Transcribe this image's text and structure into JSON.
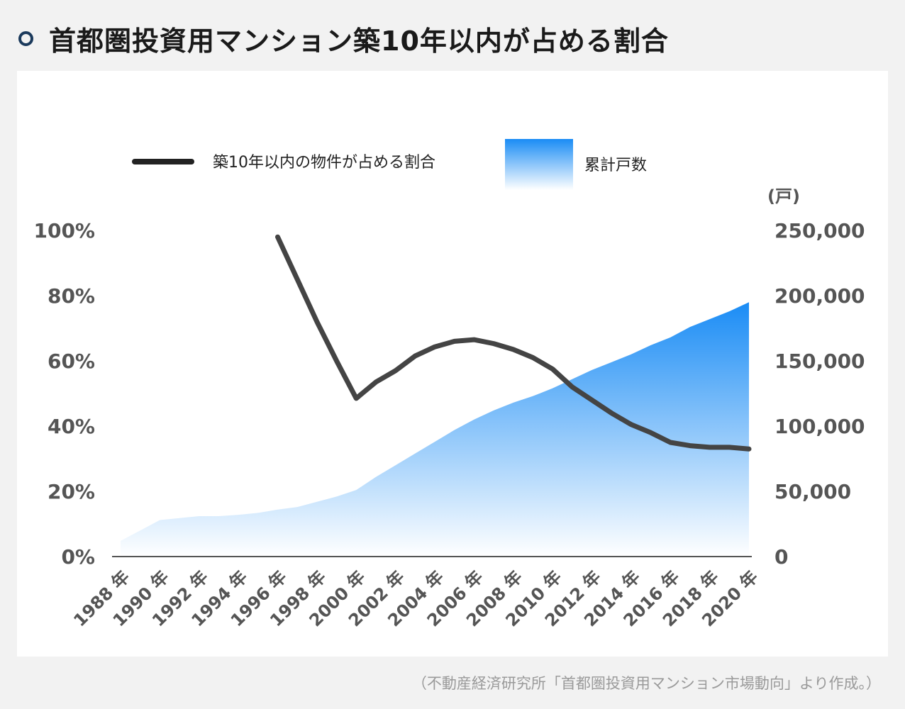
{
  "title": "首都圏投資用マンション築10年以内が占める割合",
  "source": "（不動産経済研究所「首都圏投資用マンション市場動向」より作成。）",
  "colors": {
    "line": "#444444",
    "area_top": "#1a8cf5",
    "area_bottom": "#ffffff",
    "title_bullet": "#1b3a5c"
  },
  "chart_data": {
    "type": "line+area",
    "legend": {
      "placement": "top",
      "line_label": "築10年以内の物件が占める割合",
      "area_label": "累計戸数"
    },
    "y_left": {
      "ticks": [
        0,
        20,
        40,
        60,
        80,
        100
      ],
      "tick_labels": [
        "0%",
        "20%",
        "40%",
        "60%",
        "80%",
        "100%"
      ],
      "range": [
        0,
        100
      ]
    },
    "y_right": {
      "unit_label": "(戸)",
      "ticks": [
        0,
        50000,
        100000,
        150000,
        200000,
        250000
      ],
      "tick_labels": [
        "0",
        "50,000",
        "100,000",
        "150,000",
        "200,000",
        "250,000"
      ],
      "range": [
        0,
        250000
      ]
    },
    "x_tick_labels": [
      "1988 年",
      "1990 年",
      "1992 年",
      "1994 年",
      "1996 年",
      "1998 年",
      "2000 年",
      "2002 年",
      "2004 年",
      "2006 年",
      "2008 年",
      "2010 年",
      "2012 年",
      "2014 年",
      "2016 年",
      "2018 年",
      "2020 年"
    ],
    "x_range": [
      1988,
      2020
    ],
    "series": [
      {
        "name": "累計戸数",
        "type": "area",
        "axis": "right",
        "x": [
          1988,
          1989,
          1990,
          1991,
          1992,
          1993,
          1994,
          1995,
          1996,
          1997,
          1998,
          1999,
          2000,
          2001,
          2002,
          2003,
          2004,
          2005,
          2006,
          2007,
          2008,
          2009,
          2010,
          2011,
          2012,
          2013,
          2014,
          2015,
          2016,
          2017,
          2018,
          2019,
          2020
        ],
        "values": [
          12000,
          20000,
          28000,
          29500,
          31000,
          31000,
          32000,
          33500,
          36000,
          38000,
          42000,
          46000,
          51000,
          61000,
          70000,
          79000,
          88000,
          97000,
          105000,
          112000,
          118000,
          123000,
          129000,
          136000,
          143000,
          149000,
          155000,
          162000,
          168000,
          176000,
          182000,
          188000,
          195000
        ]
      },
      {
        "name": "築10年以内の物件が占める割合",
        "type": "line",
        "axis": "left",
        "x": [
          1996,
          1997,
          1998,
          1999,
          2000,
          2001,
          2002,
          2003,
          2004,
          2005,
          2006,
          2007,
          2008,
          2009,
          2010,
          2011,
          2012,
          2013,
          2014,
          2015,
          2016,
          2017,
          2018,
          2019,
          2020
        ],
        "values": [
          98,
          85,
          72,
          60,
          48.5,
          53.5,
          57,
          61.5,
          64.3,
          66,
          66.5,
          65.3,
          63.5,
          61,
          57.5,
          52,
          48,
          44,
          40.5,
          38,
          35,
          34,
          33.5,
          33.5,
          33
        ]
      }
    ]
  }
}
